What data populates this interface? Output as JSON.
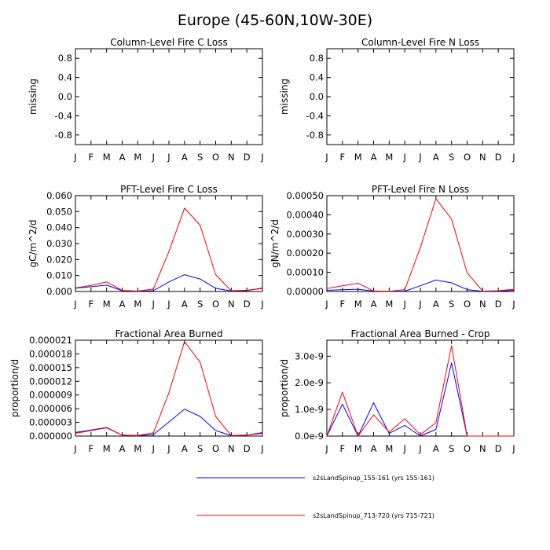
{
  "title": "Europe (45-60N,10W-30E)",
  "colors": {
    "series_a": "#0000ff",
    "series_b": "#ff0000",
    "axis": "#000000"
  },
  "legend": {
    "placement": "bottom",
    "entries": [
      {
        "label": "s2sLandSpinup_155-161 (yrs 155-161)",
        "color": "#0000ff"
      },
      {
        "label": "s2sLandSpinup_713-720 (yrs 715-721)",
        "color": "#ff0000"
      }
    ]
  },
  "chart_data": [
    {
      "type": "line",
      "title": "Column-Level Fire C Loss",
      "ylabel": "missing",
      "x": [
        "J",
        "F",
        "M",
        "A",
        "M",
        "J",
        "J",
        "A",
        "S",
        "O",
        "N",
        "D",
        "J"
      ],
      "ylim": [
        -1.0,
        1.0
      ],
      "yticks": [
        "0.8",
        "0.4",
        "0.0",
        "-0.4",
        "-0.8"
      ],
      "ytick_values": [
        0.8,
        0.4,
        0.0,
        -0.4,
        -0.8
      ],
      "series": []
    },
    {
      "type": "line",
      "title": "Column-Level Fire N Loss",
      "ylabel": "missing",
      "x": [
        "J",
        "F",
        "M",
        "A",
        "M",
        "J",
        "J",
        "A",
        "S",
        "O",
        "N",
        "D",
        "J"
      ],
      "ylim": [
        -1.0,
        1.0
      ],
      "yticks": [
        "0.8",
        "0.4",
        "0.0",
        "-0.4",
        "-0.8"
      ],
      "ytick_values": [
        0.8,
        0.4,
        0.0,
        -0.4,
        -0.8
      ],
      "series": []
    },
    {
      "type": "line",
      "title": "PFT-Level Fire C Loss",
      "ylabel": "gC/m^2/d",
      "x": [
        "J",
        "F",
        "M",
        "A",
        "M",
        "J",
        "J",
        "A",
        "S",
        "O",
        "N",
        "D",
        "J"
      ],
      "ylim": [
        0,
        0.06
      ],
      "yticks": [
        "0.060",
        "0.050",
        "0.040",
        "0.030",
        "0.020",
        "0.010",
        "0.000"
      ],
      "ytick_values": [
        0.06,
        0.05,
        0.04,
        0.03,
        0.02,
        0.01,
        0.0
      ],
      "series": [
        {
          "color": "#0000ff",
          "values": [
            0.002,
            0.003,
            0.004,
            0.0005,
            0.0002,
            0.0005,
            0.006,
            0.0105,
            0.0078,
            0.002,
            0.0003,
            0.0005,
            0.0022
          ]
        },
        {
          "color": "#ff0000",
          "values": [
            0.0022,
            0.0038,
            0.006,
            0.0007,
            0.0003,
            0.0015,
            0.025,
            0.0522,
            0.0415,
            0.0105,
            0.0005,
            0.0008,
            0.0018
          ]
        }
      ]
    },
    {
      "type": "line",
      "title": "PFT-Level Fire N Loss",
      "ylabel": "gN/m^2/d",
      "x": [
        "J",
        "F",
        "M",
        "A",
        "M",
        "J",
        "J",
        "A",
        "S",
        "O",
        "N",
        "D",
        "J"
      ],
      "ylim": [
        0,
        0.0005
      ],
      "yticks": [
        "0.00050",
        "0.00040",
        "0.00030",
        "0.00020",
        "0.00010",
        "0.00000"
      ],
      "ytick_values": [
        0.0005,
        0.0004,
        0.0003,
        0.0002,
        0.0001,
        0.0
      ],
      "series": [
        {
          "color": "#0000ff",
          "values": [
            6e-06,
            9e-06,
            1.2e-05,
            2e-06,
            1e-06,
            2e-06,
            3e-05,
            6e-05,
            4.5e-05,
            1e-05,
            1e-06,
            2e-06,
            6e-06
          ]
        },
        {
          "color": "#ff0000",
          "values": [
            1.5e-05,
            3e-05,
            4.3e-05,
            3e-06,
            1e-06,
            1e-05,
            0.00023,
            0.000484,
            0.000378,
            9.8e-05,
            2e-06,
            4e-06,
            1.2e-05
          ]
        }
      ]
    },
    {
      "type": "line",
      "title": "Fractional Area Burned",
      "ylabel": "proportion/d",
      "x": [
        "J",
        "F",
        "M",
        "A",
        "M",
        "J",
        "J",
        "A",
        "S",
        "O",
        "N",
        "D",
        "J"
      ],
      "ylim": [
        0,
        2.1e-05
      ],
      "yticks": [
        "0.000021",
        "0.000018",
        "0.000015",
        "0.000012",
        "0.000009",
        "0.000006",
        "0.000003",
        "0.000000"
      ],
      "ytick_values": [
        2.1e-05,
        1.8e-05,
        1.5e-05,
        1.2e-05,
        9e-06,
        6e-06,
        3e-06,
        0.0
      ],
      "series": [
        {
          "color": "#0000ff",
          "values": [
            8e-07,
            1.3e-06,
            1.9e-06,
            2e-07,
            1e-07,
            3e-07,
            3.1e-06,
            5.9e-06,
            4.3e-06,
            1.2e-06,
            1e-07,
            2e-07,
            6e-07
          ]
        },
        {
          "color": "#ff0000",
          "values": [
            6e-07,
            1.2e-06,
            1.8e-06,
            2e-07,
            1e-07,
            7e-07,
            9.5e-06,
            2.07e-05,
            1.62e-05,
            4.3e-06,
            1e-07,
            2e-07,
            8e-07
          ]
        }
      ]
    },
    {
      "type": "line",
      "title": "Fractional Area Burned - Crop",
      "ylabel": "proportion/d",
      "x": [
        "J",
        "F",
        "M",
        "A",
        "M",
        "J",
        "J",
        "A",
        "S",
        "O",
        "N",
        "D",
        "J"
      ],
      "ylim": [
        0,
        3.6e-09
      ],
      "yticks": [
        "3.0e-9",
        "2.0e-9",
        "1.0e-9",
        "0.0e-9"
      ],
      "ytick_values": [
        3e-09,
        2e-09,
        1e-09,
        0.0
      ],
      "series": [
        {
          "color": "#0000ff",
          "values": [
            0.0,
            1.2e-09,
            0.0,
            1.25e-09,
            1e-10,
            4e-10,
            0.0,
            2.5e-10,
            2.75e-09,
            0.0,
            0.0,
            0.0,
            0.0
          ]
        },
        {
          "color": "#ff0000",
          "values": [
            0.0,
            1.65e-09,
            0.0,
            8e-10,
            1.5e-10,
            6.5e-10,
            5e-11,
            5e-10,
            3.4e-09,
            0.0,
            0.0,
            0.0,
            0.0
          ]
        }
      ]
    }
  ]
}
